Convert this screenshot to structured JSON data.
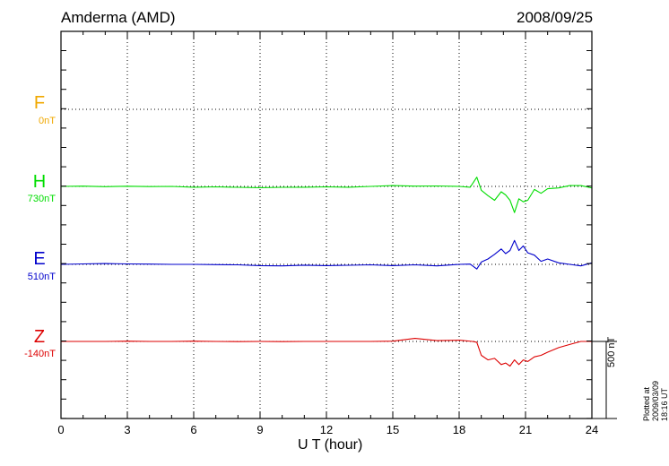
{
  "header": {
    "station": "Amderma (AMD)",
    "date": "2008/09/25"
  },
  "components": [
    {
      "name": "F",
      "baseline": "0nT",
      "color": "#f0a800"
    },
    {
      "name": "H",
      "baseline": "730nT",
      "color": "#00dd00"
    },
    {
      "name": "E",
      "baseline": "510nT",
      "color": "#0000cc"
    },
    {
      "name": "Z",
      "baseline": "-140nT",
      "color": "#dd0000"
    }
  ],
  "scale_bar_label": "500 nT",
  "plotted_note": "Plotted at 2009/03/09 18:16 UT",
  "chart_data": {
    "type": "line",
    "xlabel": "U T (hour)",
    "xlim": [
      0,
      24
    ],
    "xticks": [
      0,
      3,
      6,
      9,
      12,
      15,
      18,
      21,
      24
    ],
    "grid": true,
    "scale_nT": 500,
    "series": [
      {
        "name": "H",
        "unit": "nT",
        "baseline_nT": 730,
        "x": [
          0,
          1,
          2,
          3,
          4,
          5,
          6,
          7,
          8,
          9,
          10,
          11,
          12,
          13,
          14,
          15,
          16,
          17,
          18,
          18.5,
          18.8,
          19.0,
          19.3,
          19.6,
          19.9,
          20.1,
          20.3,
          20.5,
          20.7,
          20.9,
          21.1,
          21.4,
          21.7,
          22.0,
          22.5,
          23.0,
          23.5,
          24
        ],
        "values": [
          0,
          2,
          -2,
          1,
          -1,
          0,
          -5,
          -3,
          -6,
          -8,
          -6,
          -5,
          -3,
          -5,
          0,
          5,
          2,
          3,
          0,
          -5,
          60,
          -25,
          -60,
          -90,
          -35,
          -55,
          -90,
          -170,
          -80,
          -100,
          -90,
          -20,
          -45,
          -15,
          -10,
          5,
          5,
          -10
        ]
      },
      {
        "name": "E",
        "unit": "nT",
        "baseline_nT": 510,
        "x": [
          0,
          1,
          2,
          3,
          4,
          5,
          6,
          7,
          8,
          9,
          10,
          11,
          12,
          13,
          14,
          15,
          16,
          17,
          18,
          18.5,
          18.8,
          19.0,
          19.3,
          19.6,
          19.9,
          20.1,
          20.3,
          20.5,
          20.7,
          20.9,
          21.1,
          21.4,
          21.7,
          22.0,
          22.5,
          23.0,
          23.5,
          24
        ],
        "values": [
          0,
          3,
          5,
          3,
          2,
          0,
          0,
          -2,
          -3,
          -8,
          -10,
          -5,
          -8,
          -6,
          -3,
          -8,
          -3,
          -10,
          0,
          2,
          -30,
          15,
          35,
          65,
          100,
          70,
          90,
          155,
          90,
          120,
          75,
          60,
          20,
          35,
          10,
          0,
          -10,
          10
        ]
      },
      {
        "name": "Z",
        "unit": "nT",
        "baseline_nT": -140,
        "x": [
          0,
          1,
          2,
          3,
          4,
          5,
          6,
          7,
          8,
          9,
          10,
          11,
          12,
          13,
          14,
          15,
          16,
          17,
          18,
          18.6,
          18.8,
          19.0,
          19.3,
          19.6,
          19.9,
          20.1,
          20.3,
          20.5,
          20.7,
          20.9,
          21.1,
          21.4,
          21.7,
          22.0,
          22.5,
          23.0,
          23.5,
          24
        ],
        "values": [
          0,
          0,
          0,
          2,
          0,
          0,
          2,
          0,
          -1,
          0,
          -1,
          0,
          0,
          0,
          0,
          2,
          20,
          5,
          8,
          0,
          -5,
          -90,
          -120,
          -110,
          -150,
          -140,
          -160,
          -120,
          -150,
          -120,
          -130,
          -100,
          -90,
          -70,
          -40,
          -20,
          0,
          0
        ]
      }
    ]
  }
}
